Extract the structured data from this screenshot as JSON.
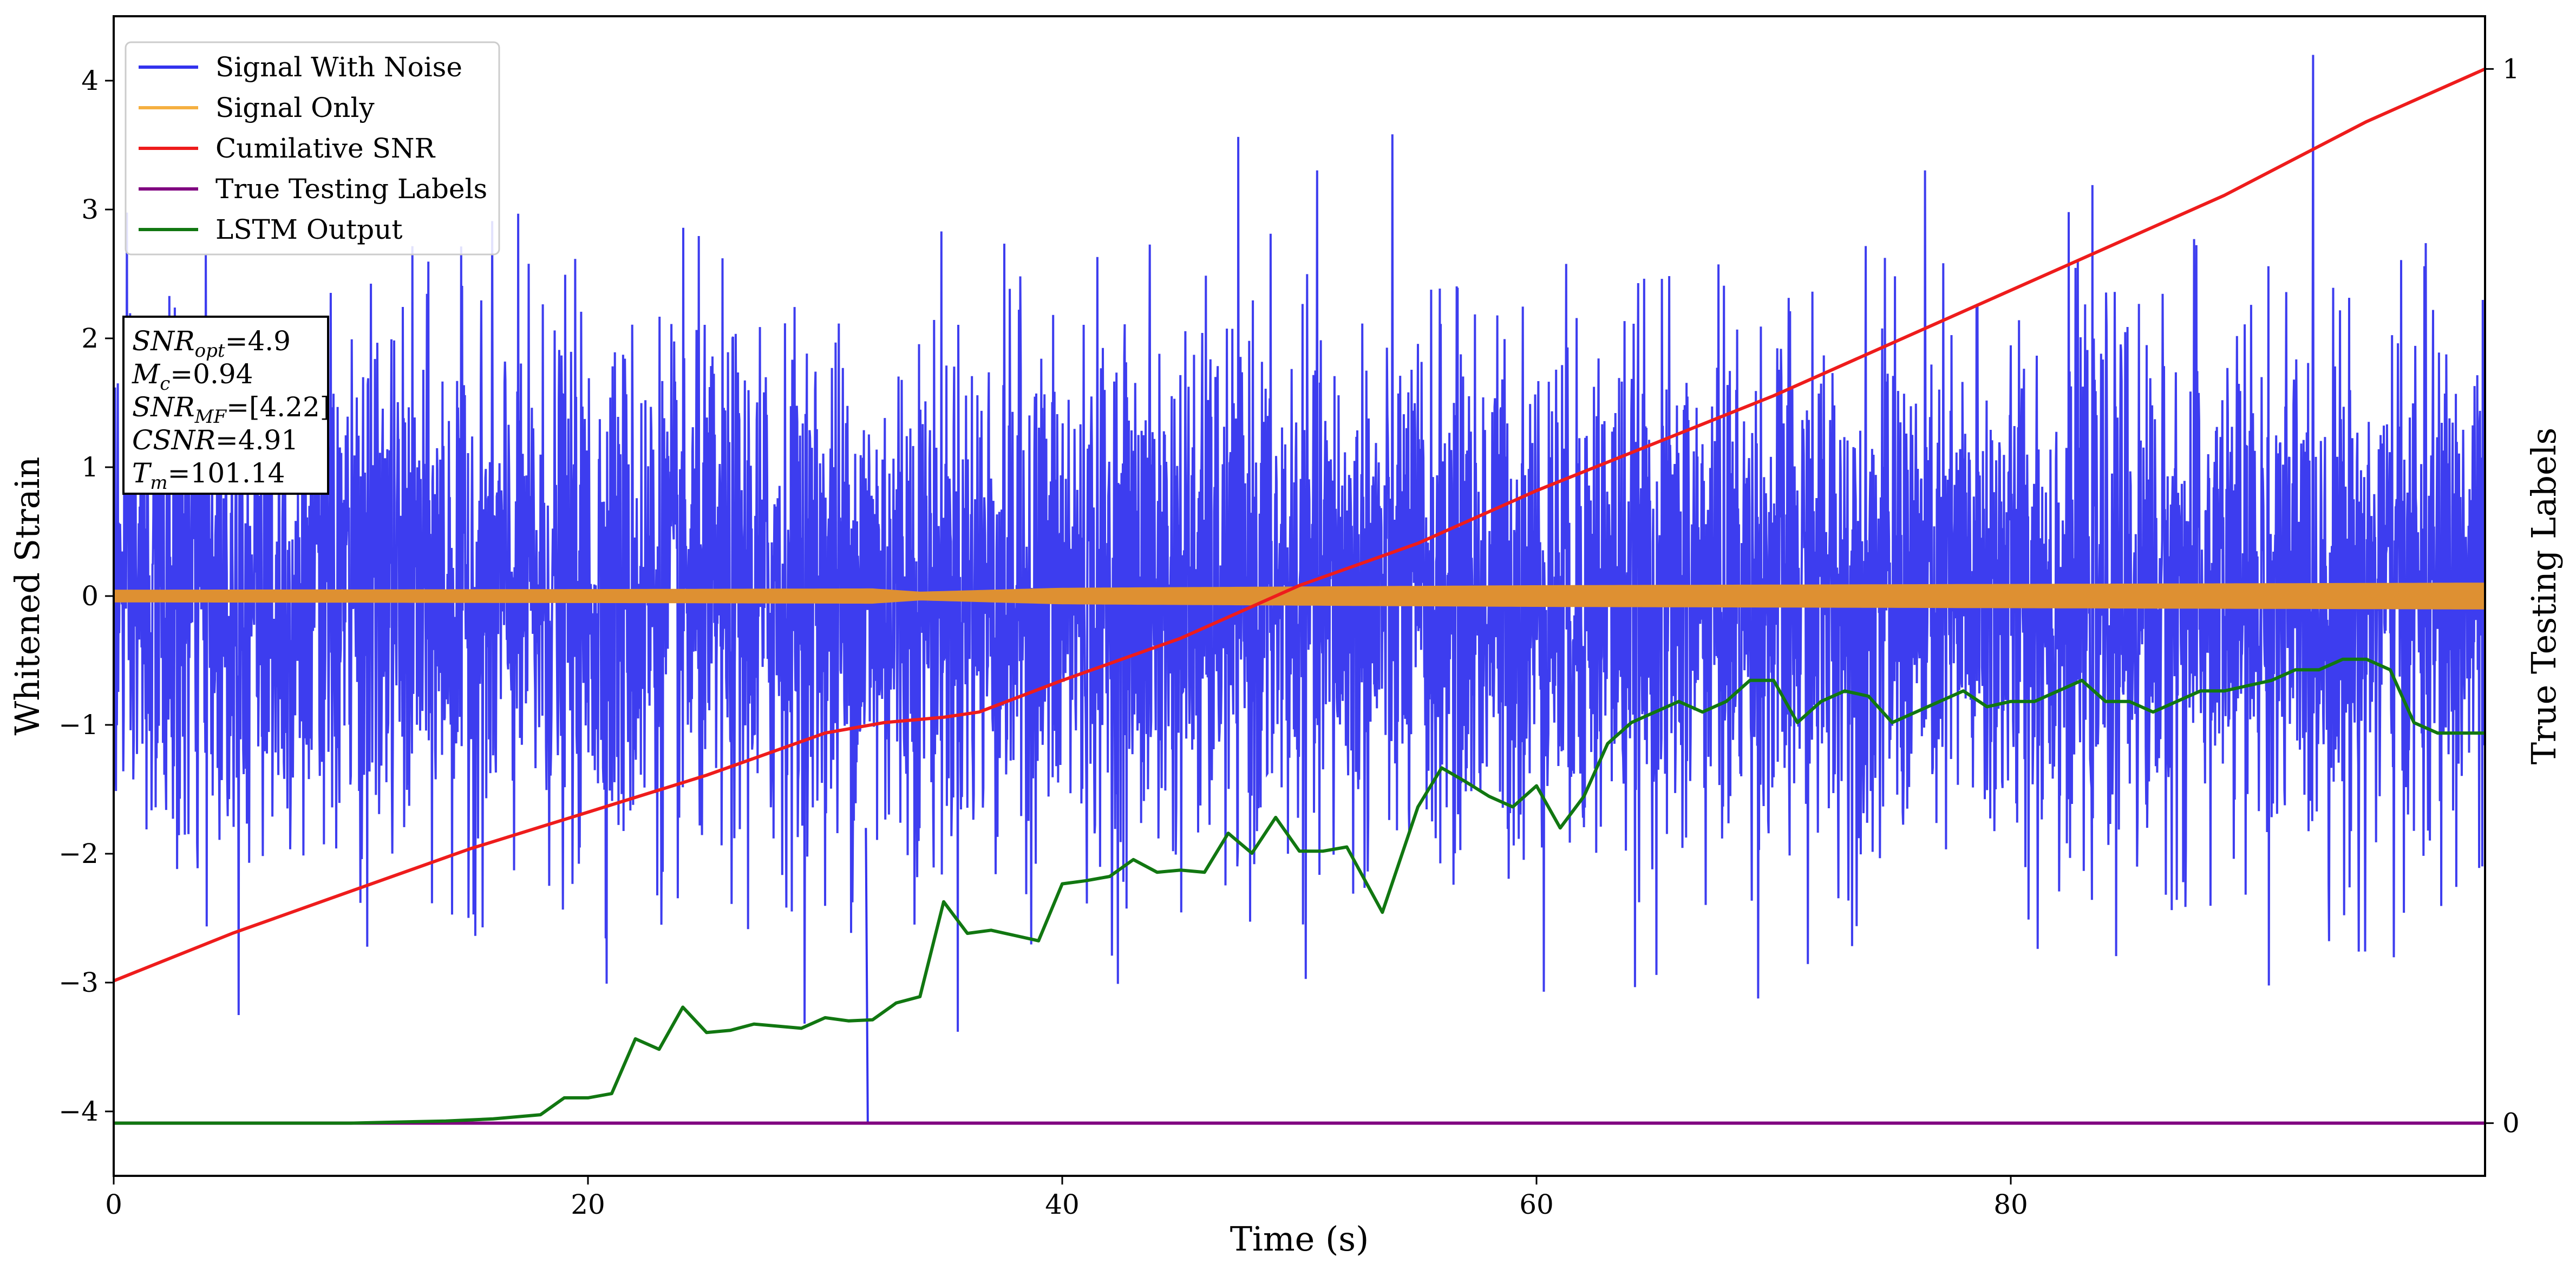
{
  "chart_data": {
    "type": "line",
    "xlabel": "Time (s)",
    "ylabel_left": "Whitened Strain",
    "ylabel_right": "True Testing Labels",
    "xlim": [
      0,
      100
    ],
    "ylim_left": [
      -4.5,
      4.5
    ],
    "ylim_right": [
      -0.05,
      1.05
    ],
    "x_ticks": [
      0,
      20,
      40,
      60,
      80
    ],
    "x_tick_labels": [
      "0",
      "20",
      "40",
      "60",
      "80"
    ],
    "y_left_ticks": [
      -4,
      -3,
      -2,
      -1,
      0,
      1,
      2,
      3,
      4
    ],
    "y_left_tick_labels": [
      "−4",
      "−3",
      "−2",
      "−1",
      "0",
      "1",
      "2",
      "3",
      "4"
    ],
    "y_right_ticks": [
      0,
      1
    ],
    "y_right_tick_labels": [
      "0",
      "1"
    ],
    "grid": false,
    "legend_position": "upper-left",
    "series": [
      {
        "name": "Signal With Noise",
        "color": "#3333ee",
        "axis": "left",
        "style": "dense-noise",
        "rms": 1.0,
        "notable_min": {
          "x": 31.8,
          "y": -4.1
        }
      },
      {
        "name": "Signal Only",
        "color": "#f5a623",
        "axis": "left",
        "style": "band",
        "x": [
          0,
          20,
          32,
          34,
          40,
          60,
          80,
          100
        ],
        "amplitude": [
          0.045,
          0.05,
          0.055,
          0.03,
          0.06,
          0.08,
          0.09,
          0.1
        ]
      },
      {
        "name": "Cumilative SNR",
        "color": "#ee1c1c",
        "axis": "right",
        "x": [
          0,
          5,
          10,
          15,
          20,
          25,
          30,
          32.5,
          35,
          36.5,
          40,
          45,
          50,
          55,
          60,
          65,
          70,
          75,
          80,
          85,
          89,
          95,
          100
        ],
        "y": [
          0.135,
          0.18,
          0.22,
          0.26,
          0.295,
          0.33,
          0.37,
          0.38,
          0.385,
          0.39,
          0.42,
          0.46,
          0.51,
          0.55,
          0.6,
          0.645,
          0.69,
          0.74,
          0.79,
          0.84,
          0.88,
          0.95,
          1.0
        ]
      },
      {
        "name": "True Testing Labels",
        "color": "#800080",
        "axis": "right",
        "x": [
          0,
          100
        ],
        "y": [
          0,
          0
        ]
      },
      {
        "name": "LSTM Output",
        "color": "#117711",
        "axis": "right",
        "x": [
          0,
          10,
          14,
          16,
          18,
          19,
          20,
          21,
          22,
          23,
          24,
          25,
          26,
          27,
          28,
          29,
          30,
          31,
          32,
          33,
          34,
          35,
          36,
          37,
          38,
          39,
          40,
          41,
          42,
          43,
          44,
          45,
          46,
          47,
          48,
          49,
          50,
          51,
          52,
          53.5,
          55,
          56,
          57,
          58,
          59,
          60,
          61,
          62,
          63,
          64,
          65,
          66,
          67,
          68,
          69,
          70,
          71,
          72,
          73,
          74,
          75,
          76,
          77,
          78,
          79,
          80,
          81,
          82,
          83,
          84,
          85,
          86,
          87,
          88,
          89,
          90,
          91,
          92,
          93,
          94,
          95,
          96,
          97,
          98,
          99,
          100
        ],
        "y": [
          0,
          0,
          0.002,
          0.004,
          0.008,
          0.024,
          0.024,
          0.028,
          0.08,
          0.07,
          0.11,
          0.086,
          0.088,
          0.094,
          0.092,
          0.09,
          0.1,
          0.097,
          0.098,
          0.114,
          0.12,
          0.21,
          0.18,
          0.183,
          0.178,
          0.173,
          0.227,
          0.23,
          0.234,
          0.25,
          0.238,
          0.24,
          0.238,
          0.275,
          0.256,
          0.29,
          0.258,
          0.258,
          0.262,
          0.2,
          0.3,
          0.337,
          0.324,
          0.31,
          0.3,
          0.32,
          0.28,
          0.31,
          0.36,
          0.38,
          0.39,
          0.4,
          0.39,
          0.4,
          0.42,
          0.42,
          0.38,
          0.4,
          0.41,
          0.405,
          0.38,
          0.39,
          0.4,
          0.41,
          0.395,
          0.4,
          0.4,
          0.41,
          0.42,
          0.4,
          0.4,
          0.39,
          0.4,
          0.41,
          0.41,
          0.415,
          0.42,
          0.43,
          0.43,
          0.44,
          0.44,
          0.43,
          0.38,
          0.37,
          0.37,
          0.37
        ]
      }
    ]
  },
  "info_box": {
    "lines": [
      {
        "main": "SNR",
        "sub": "opt",
        "rest": "=4.9"
      },
      {
        "main": "M",
        "sub": "c",
        "rest": "=0.94"
      },
      {
        "main": "SNR",
        "sub": "MF",
        "rest": "=[4.22]"
      },
      {
        "main": "CSNR",
        "sub": "",
        "rest": "=4.91"
      },
      {
        "main": "T",
        "sub": "m",
        "rest": "=101.14"
      }
    ]
  }
}
